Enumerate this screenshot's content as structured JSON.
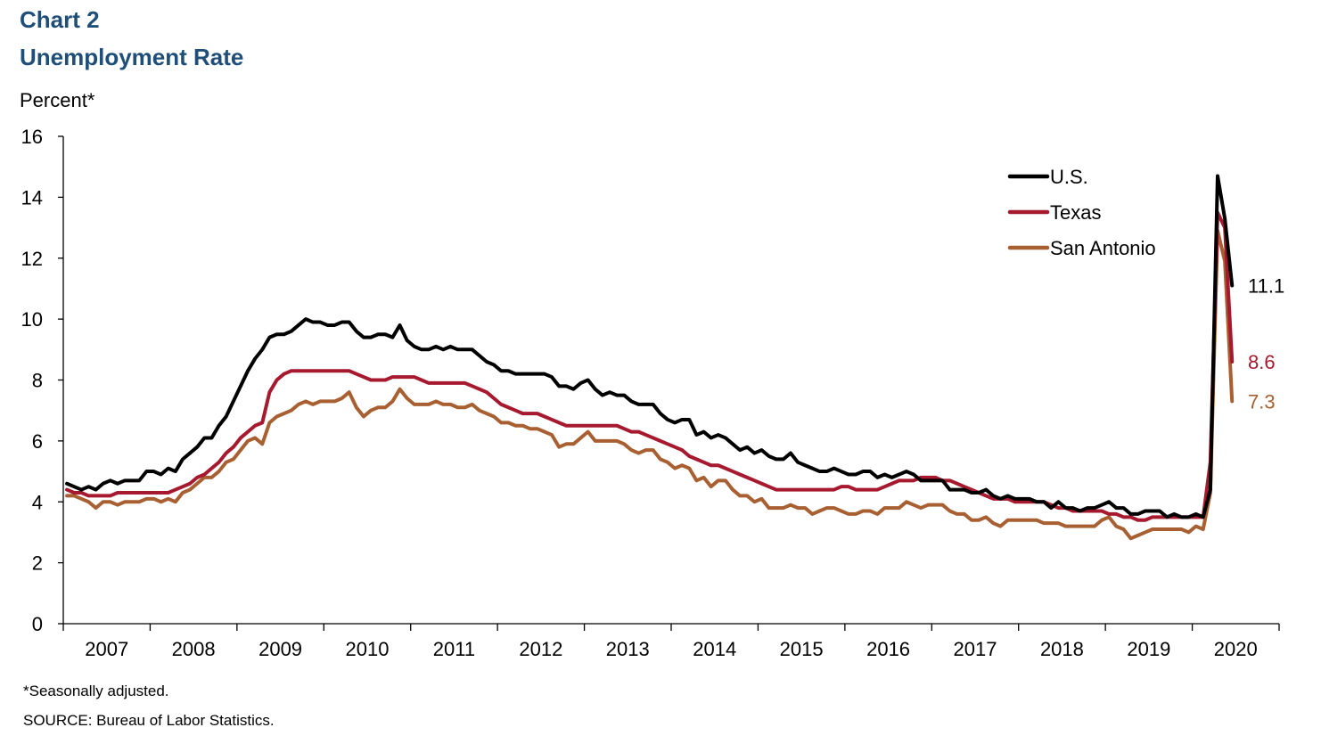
{
  "header": {
    "chart_number": "Chart 2",
    "title": "Unemployment Rate",
    "ylabel": "Percent*"
  },
  "footer": {
    "note": "*Seasonally adjusted.",
    "source": "SOURCE:  Bureau of Labor Statistics."
  },
  "chart_data": {
    "type": "line",
    "title": "Unemployment Rate",
    "ylabel": "Percent*",
    "xlabel": "",
    "ylim": [
      0,
      16
    ],
    "yticks": [
      0,
      2,
      4,
      6,
      8,
      10,
      12,
      14,
      16
    ],
    "x_start": "2007-01",
    "x_end": "2020-06",
    "x_tick_labels": [
      "2007",
      "2008",
      "2009",
      "2010",
      "2011",
      "2012",
      "2013",
      "2014",
      "2015",
      "2016",
      "2017",
      "2018",
      "2019",
      "2020"
    ],
    "legend_position": "top-right",
    "grid": false,
    "series": [
      {
        "name": "U.S.",
        "color": "#000000",
        "end_label": "11.1",
        "values": [
          4.6,
          4.5,
          4.4,
          4.5,
          4.4,
          4.6,
          4.7,
          4.6,
          4.7,
          4.7,
          4.7,
          5.0,
          5.0,
          4.9,
          5.1,
          5.0,
          5.4,
          5.6,
          5.8,
          6.1,
          6.1,
          6.5,
          6.8,
          7.3,
          7.8,
          8.3,
          8.7,
          9.0,
          9.4,
          9.5,
          9.5,
          9.6,
          9.8,
          10.0,
          9.9,
          9.9,
          9.8,
          9.8,
          9.9,
          9.9,
          9.6,
          9.4,
          9.4,
          9.5,
          9.5,
          9.4,
          9.8,
          9.3,
          9.1,
          9.0,
          9.0,
          9.1,
          9.0,
          9.1,
          9.0,
          9.0,
          9.0,
          8.8,
          8.6,
          8.5,
          8.3,
          8.3,
          8.2,
          8.2,
          8.2,
          8.2,
          8.2,
          8.1,
          7.8,
          7.8,
          7.7,
          7.9,
          8.0,
          7.7,
          7.5,
          7.6,
          7.5,
          7.5,
          7.3,
          7.2,
          7.2,
          7.2,
          6.9,
          6.7,
          6.6,
          6.7,
          6.7,
          6.2,
          6.3,
          6.1,
          6.2,
          6.1,
          5.9,
          5.7,
          5.8,
          5.6,
          5.7,
          5.5,
          5.4,
          5.4,
          5.6,
          5.3,
          5.2,
          5.1,
          5.0,
          5.0,
          5.1,
          5.0,
          4.9,
          4.9,
          5.0,
          5.0,
          4.8,
          4.9,
          4.8,
          4.9,
          5.0,
          4.9,
          4.7,
          4.7,
          4.7,
          4.7,
          4.4,
          4.4,
          4.4,
          4.3,
          4.3,
          4.4,
          4.2,
          4.1,
          4.2,
          4.1,
          4.1,
          4.1,
          4.0,
          4.0,
          3.8,
          4.0,
          3.8,
          3.8,
          3.7,
          3.8,
          3.8,
          3.9,
          4.0,
          3.8,
          3.8,
          3.6,
          3.6,
          3.7,
          3.7,
          3.7,
          3.5,
          3.6,
          3.5,
          3.5,
          3.6,
          3.5,
          4.4,
          14.7,
          13.3,
          11.1
        ]
      },
      {
        "name": "Texas",
        "color": "#a6192e",
        "end_label": "8.6",
        "values": [
          4.4,
          4.3,
          4.3,
          4.2,
          4.2,
          4.2,
          4.2,
          4.3,
          4.3,
          4.3,
          4.3,
          4.3,
          4.3,
          4.3,
          4.3,
          4.4,
          4.5,
          4.6,
          4.8,
          4.9,
          5.1,
          5.3,
          5.6,
          5.8,
          6.1,
          6.3,
          6.5,
          6.6,
          7.6,
          8.0,
          8.2,
          8.3,
          8.3,
          8.3,
          8.3,
          8.3,
          8.3,
          8.3,
          8.3,
          8.3,
          8.2,
          8.1,
          8.0,
          8.0,
          8.0,
          8.1,
          8.1,
          8.1,
          8.1,
          8.0,
          7.9,
          7.9,
          7.9,
          7.9,
          7.9,
          7.9,
          7.8,
          7.7,
          7.6,
          7.4,
          7.2,
          7.1,
          7.0,
          6.9,
          6.9,
          6.9,
          6.8,
          6.7,
          6.6,
          6.5,
          6.5,
          6.5,
          6.5,
          6.5,
          6.5,
          6.5,
          6.5,
          6.4,
          6.3,
          6.3,
          6.2,
          6.1,
          6.0,
          5.9,
          5.8,
          5.7,
          5.5,
          5.4,
          5.3,
          5.2,
          5.2,
          5.1,
          5.0,
          4.9,
          4.8,
          4.7,
          4.6,
          4.5,
          4.4,
          4.4,
          4.4,
          4.4,
          4.4,
          4.4,
          4.4,
          4.4,
          4.4,
          4.5,
          4.5,
          4.4,
          4.4,
          4.4,
          4.4,
          4.5,
          4.6,
          4.7,
          4.7,
          4.7,
          4.8,
          4.8,
          4.8,
          4.7,
          4.7,
          4.6,
          4.5,
          4.4,
          4.3,
          4.2,
          4.1,
          4.1,
          4.1,
          4.0,
          4.0,
          4.0,
          4.0,
          4.0,
          3.9,
          3.8,
          3.8,
          3.7,
          3.7,
          3.7,
          3.7,
          3.7,
          3.6,
          3.6,
          3.5,
          3.5,
          3.4,
          3.4,
          3.5,
          3.5,
          3.5,
          3.5,
          3.5,
          3.5,
          3.5,
          3.5,
          5.3,
          13.5,
          13.0,
          8.6
        ]
      },
      {
        "name": "San Antonio",
        "color": "#a86032",
        "end_label": "7.3",
        "values": [
          4.2,
          4.2,
          4.1,
          4.0,
          3.8,
          4.0,
          4.0,
          3.9,
          4.0,
          4.0,
          4.0,
          4.1,
          4.1,
          4.0,
          4.1,
          4.0,
          4.3,
          4.4,
          4.6,
          4.8,
          4.8,
          5.0,
          5.3,
          5.4,
          5.7,
          6.0,
          6.1,
          5.9,
          6.6,
          6.8,
          6.9,
          7.0,
          7.2,
          7.3,
          7.2,
          7.3,
          7.3,
          7.3,
          7.4,
          7.6,
          7.1,
          6.8,
          7.0,
          7.1,
          7.1,
          7.3,
          7.7,
          7.4,
          7.2,
          7.2,
          7.2,
          7.3,
          7.2,
          7.2,
          7.1,
          7.1,
          7.2,
          7.0,
          6.9,
          6.8,
          6.6,
          6.6,
          6.5,
          6.5,
          6.4,
          6.4,
          6.3,
          6.2,
          5.8,
          5.9,
          5.9,
          6.1,
          6.3,
          6.0,
          6.0,
          6.0,
          6.0,
          5.9,
          5.7,
          5.6,
          5.7,
          5.7,
          5.4,
          5.3,
          5.1,
          5.2,
          5.1,
          4.7,
          4.8,
          4.5,
          4.7,
          4.7,
          4.4,
          4.2,
          4.2,
          4.0,
          4.1,
          3.8,
          3.8,
          3.8,
          3.9,
          3.8,
          3.8,
          3.6,
          3.7,
          3.8,
          3.8,
          3.7,
          3.6,
          3.6,
          3.7,
          3.7,
          3.6,
          3.8,
          3.8,
          3.8,
          4.0,
          3.9,
          3.8,
          3.9,
          3.9,
          3.9,
          3.7,
          3.6,
          3.6,
          3.4,
          3.4,
          3.5,
          3.3,
          3.2,
          3.4,
          3.4,
          3.4,
          3.4,
          3.4,
          3.3,
          3.3,
          3.3,
          3.2,
          3.2,
          3.2,
          3.2,
          3.2,
          3.4,
          3.5,
          3.2,
          3.1,
          2.8,
          2.9,
          3.0,
          3.1,
          3.1,
          3.1,
          3.1,
          3.1,
          3.0,
          3.2,
          3.1,
          4.3,
          12.9,
          11.9,
          7.3
        ]
      }
    ]
  }
}
